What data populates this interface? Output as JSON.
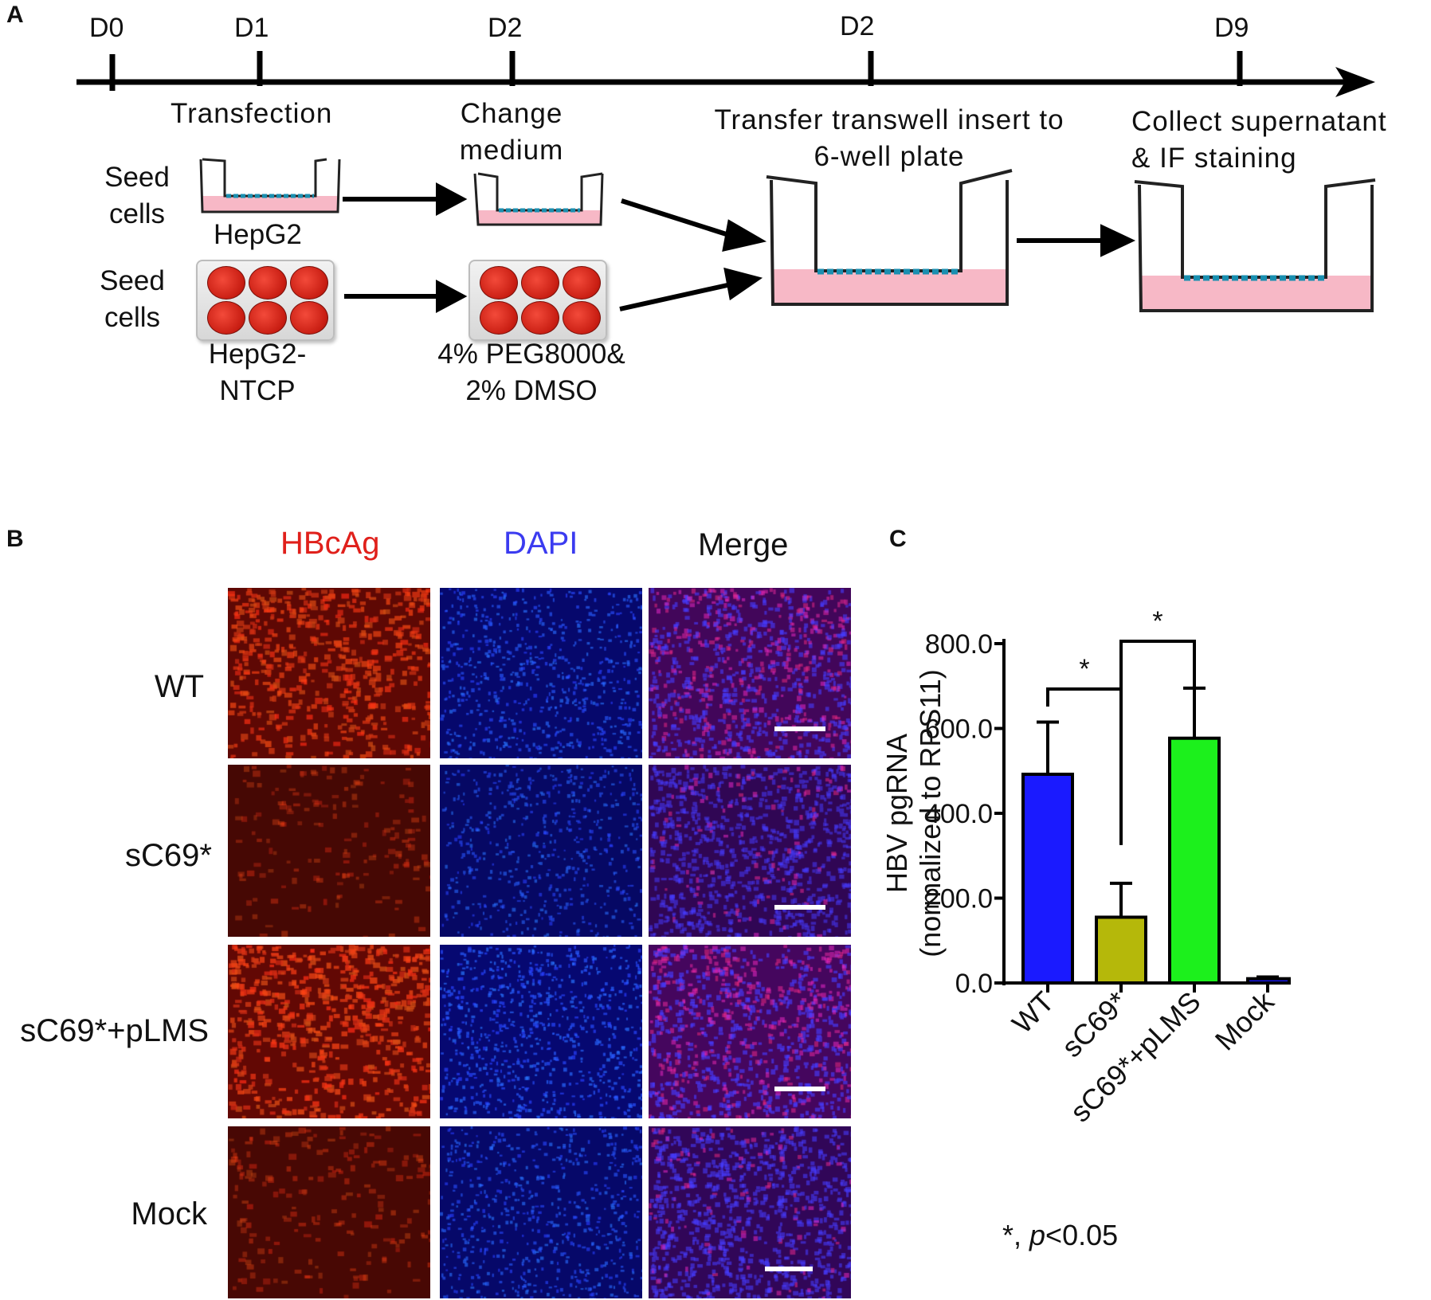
{
  "panel_a": {
    "letter": "A",
    "days": [
      "D0",
      "D1",
      "D2",
      "D2",
      "D9"
    ],
    "steps": {
      "transfection": "Transfection",
      "change_medium": [
        "Change",
        "medium"
      ],
      "transfer": [
        "Transfer  transwell  insert to",
        "6-well plate"
      ],
      "collect": [
        "Collect supernatant",
        "& IF  staining"
      ]
    },
    "row1": {
      "seed": [
        "Seed",
        "cells"
      ],
      "cell_line": "HepG2"
    },
    "row2": {
      "seed": [
        "Seed",
        "cells"
      ],
      "cell_line": [
        "HepG2-",
        "NTCP"
      ],
      "treatment": [
        "4% PEG8000&",
        "2% DMSO"
      ]
    }
  },
  "panel_b": {
    "letter": "B",
    "columns": [
      {
        "label": "HBcAg",
        "color": "#e0201b"
      },
      {
        "label": "DAPI",
        "color": "#3b3bf0"
      },
      {
        "label": "Merge",
        "color": "#111111"
      }
    ],
    "rows": [
      "WT",
      "sC69*",
      "sC69*+pLMS",
      "Mock"
    ],
    "intensity": {
      "red": [
        0.85,
        0.25,
        0.95,
        0.3
      ],
      "blue": [
        0.75,
        0.6,
        0.85,
        0.7
      ]
    }
  },
  "panel_c": {
    "letter": "C",
    "footnote_star": "*, ",
    "footnote_p": "p",
    "footnote_rest": "<0.05"
  },
  "chart_data": {
    "type": "bar",
    "categories": [
      "WT",
      "sC69*",
      "sC69*+pLMS",
      "Mock"
    ],
    "values": [
      492,
      155,
      577,
      10
    ],
    "errors": [
      123,
      80,
      118,
      4
    ],
    "colors": [
      "#1a1aff",
      "#b5b80a",
      "#1cf01c",
      "#1a1aff"
    ],
    "ylabel": "HBV pgRNA",
    "ylabel2": "(normalized to RPS11)",
    "ylim": [
      0,
      800
    ],
    "yticks": [
      "0.0",
      "200.0",
      "400.0",
      "600.0",
      "800.0"
    ],
    "significance": [
      {
        "from": "WT",
        "to": "sC69*",
        "label": "*"
      },
      {
        "from": "sC69*",
        "to": "sC69*+pLMS",
        "label": "*"
      }
    ]
  }
}
